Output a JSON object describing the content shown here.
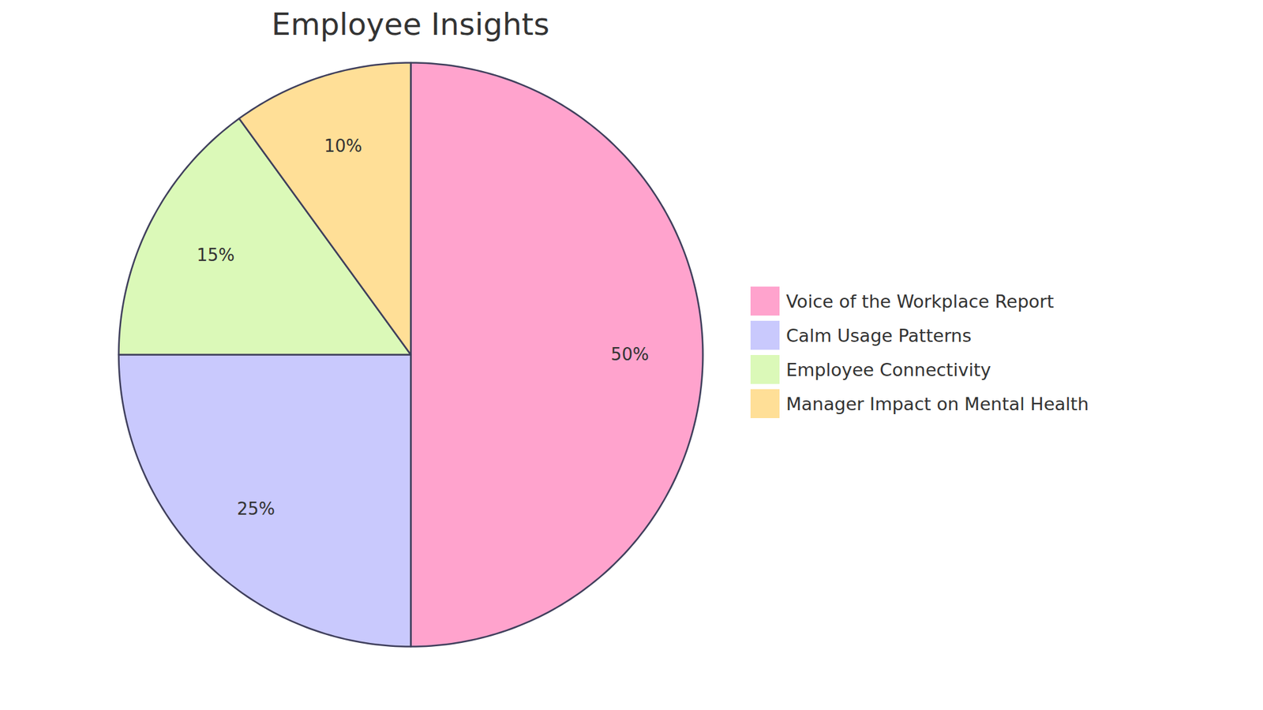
{
  "chart_data": {
    "type": "pie",
    "title": "Employee Insights",
    "categories": [
      "Voice of the Workplace Report",
      "Calm Usage Patterns",
      "Employee Connectivity",
      "Manager Impact on Mental Health"
    ],
    "values": [
      50,
      25,
      15,
      10
    ],
    "value_labels": [
      "50%",
      "25%",
      "15%",
      "10%"
    ],
    "colors": [
      "#ffa3cd",
      "#c9c9fd",
      "#dbf9b8",
      "#ffdf97"
    ],
    "data_labels": true,
    "legend": "right"
  }
}
